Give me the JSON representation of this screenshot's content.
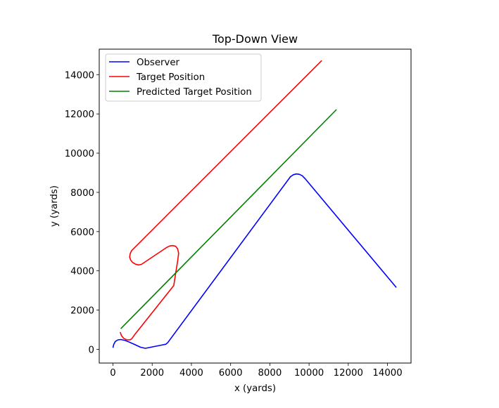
{
  "chart_data": {
    "type": "line",
    "title": "Top-Down View",
    "xlabel": "x (yards)",
    "ylabel": "y (yards)",
    "xlim": [
      -700,
      15200
    ],
    "ylim": [
      -700,
      15300
    ],
    "xticks": [
      0,
      2000,
      4000,
      6000,
      8000,
      10000,
      12000,
      14000
    ],
    "yticks": [
      0,
      2000,
      4000,
      6000,
      8000,
      10000,
      12000,
      14000
    ],
    "grid": false,
    "legend_position": "top-left",
    "series": [
      {
        "name": "Observer",
        "color": "#0000ff",
        "x": [
          0,
          40,
          120,
          250,
          400,
          600,
          800,
          1100,
          1400,
          1650,
          2100,
          2550,
          2700,
          2800,
          9050,
          9200,
          9350,
          9500,
          9650,
          9800,
          14450
        ],
        "y": [
          80,
          250,
          400,
          480,
          500,
          460,
          380,
          250,
          110,
          50,
          140,
          230,
          260,
          350,
          8800,
          8900,
          8940,
          8920,
          8850,
          8700,
          3150
        ]
      },
      {
        "name": "Target Position",
        "color": "#ff0000",
        "x": [
          370,
          430,
          550,
          700,
          850,
          950,
          1000,
          1100,
          3100,
          3200,
          3300,
          3350,
          3300,
          3200,
          3050,
          2900,
          2750,
          2600,
          1450,
          1300,
          1150,
          1000,
          900,
          850,
          880,
          950,
          10650
        ],
        "y": [
          880,
          700,
          560,
          490,
          480,
          530,
          600,
          740,
          3250,
          3900,
          4500,
          4900,
          5120,
          5250,
          5290,
          5270,
          5200,
          5100,
          4330,
          4300,
          4340,
          4430,
          4550,
          4700,
          4880,
          5030,
          14720
        ]
      },
      {
        "name": "Predicted Target Position",
        "color": "#008000",
        "x": [
          400,
          11400
        ],
        "y": [
          1050,
          12220
        ]
      }
    ]
  }
}
